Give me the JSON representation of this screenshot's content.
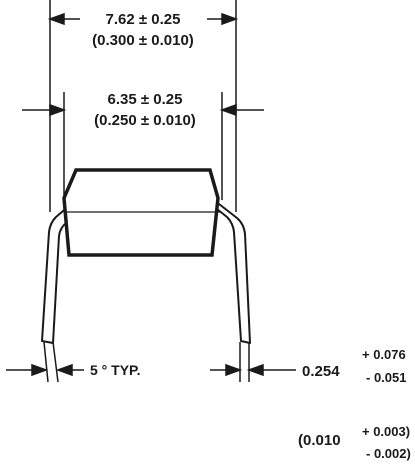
{
  "dimensions": {
    "overall_width": {
      "metric": "7.62 ± 0.25",
      "imperial": "(0.300 ± 0.010)"
    },
    "body_width": {
      "metric": "6.35 ± 0.25",
      "imperial": "(0.250 ± 0.010)"
    },
    "lead_angle": {
      "label": "5 ° TYP."
    },
    "lead_thickness": {
      "metric_nominal": "0.254",
      "metric_plus": "+ 0.076",
      "metric_minus": "- 0.051",
      "imperial_nominal": "(0.010",
      "imperial_plus": "+ 0.003)",
      "imperial_minus": "- 0.002)"
    }
  },
  "colors": {
    "line": "#1a1a1a",
    "background": "#ffffff"
  }
}
